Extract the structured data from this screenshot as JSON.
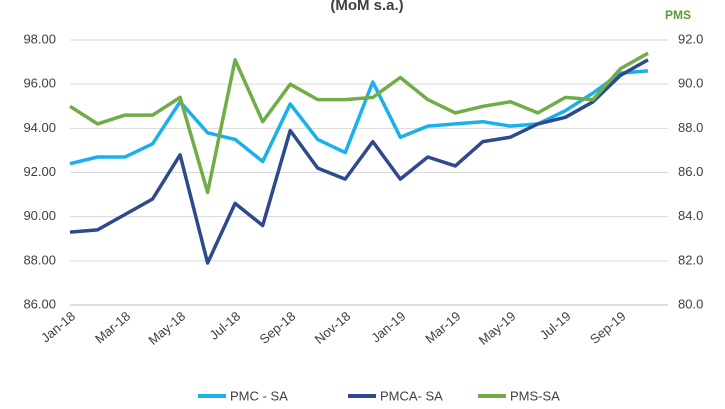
{
  "chart_data": {
    "type": "line",
    "title": "(MoM s.a.)",
    "y2_label": "PMS",
    "categories": [
      "Jan-18",
      null,
      "Mar-18",
      null,
      "May-18",
      null,
      "Jul-18",
      null,
      "Sep-18",
      null,
      "Nov-18",
      null,
      "Jan-19",
      null,
      "Mar-19",
      null,
      "May-19",
      null,
      "Jul-19",
      null,
      "Sep-19",
      null
    ],
    "series": [
      {
        "name": "PMC - SA",
        "color": "#1ab0ec",
        "values": [
          92.4,
          92.7,
          92.7,
          93.3,
          95.2,
          93.8,
          93.5,
          92.5,
          95.1,
          93.5,
          92.9,
          96.1,
          93.6,
          94.1,
          94.2,
          94.3,
          94.1,
          94.2,
          94.8,
          95.6,
          96.5,
          96.6
        ]
      },
      {
        "name": "PMCA- SA",
        "color": "#2e4a8c",
        "values": [
          89.3,
          89.4,
          90.1,
          90.8,
          92.8,
          87.9,
          90.6,
          89.6,
          93.9,
          92.2,
          91.7,
          93.4,
          91.7,
          92.7,
          92.3,
          93.4,
          93.6,
          94.2,
          94.5,
          95.2,
          96.4,
          97.1
        ]
      },
      {
        "name": "PMS-SA",
        "color": "#70ad47",
        "axis": "y2",
        "values": [
          89.0,
          88.2,
          88.6,
          88.6,
          89.4,
          85.1,
          91.1,
          88.3,
          90.0,
          89.3,
          89.3,
          89.4,
          90.3,
          89.3,
          88.7,
          89.0,
          89.2,
          88.7,
          89.4,
          89.3,
          90.7,
          91.4
        ]
      }
    ],
    "ylim": [
      86,
      98
    ],
    "yticks": [
      {
        "value": 86,
        "label": "86.00"
      },
      {
        "value": 88,
        "label": "88.00"
      },
      {
        "value": 90,
        "label": "90.00"
      },
      {
        "value": 92,
        "label": "92.00"
      },
      {
        "value": 94,
        "label": "94.00"
      },
      {
        "value": 96,
        "label": "96.00"
      },
      {
        "value": 98,
        "label": "98.00"
      }
    ],
    "y2lim": [
      80,
      92
    ],
    "y2ticks": [
      {
        "value": 80,
        "label": "80.0"
      },
      {
        "value": 82,
        "label": "82.0"
      },
      {
        "value": 84,
        "label": "84.0"
      },
      {
        "value": 86,
        "label": "86.0"
      },
      {
        "value": 88,
        "label": "88.0"
      },
      {
        "value": 90,
        "label": "90.0"
      },
      {
        "value": 92,
        "label": "92.0"
      }
    ],
    "grid": true,
    "legend": "bottom"
  }
}
